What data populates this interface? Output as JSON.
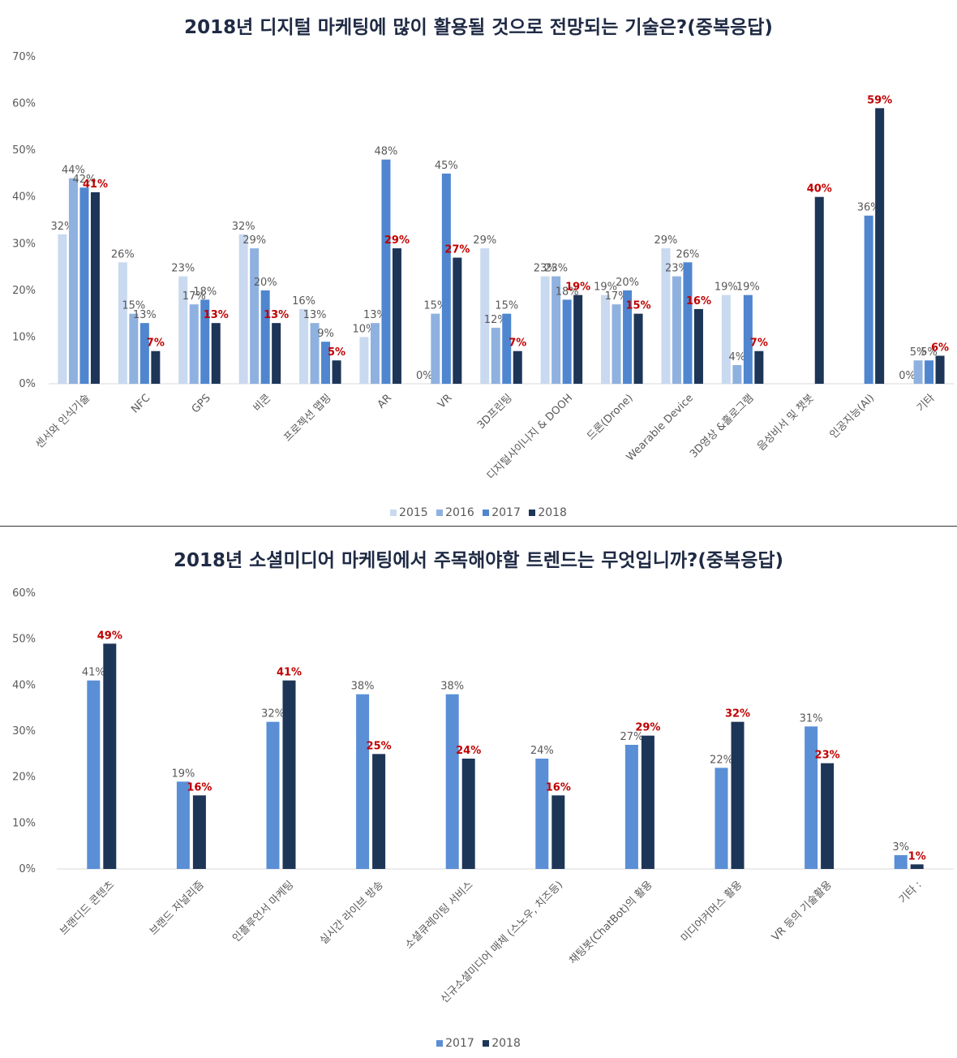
{
  "chart_data": [
    {
      "type": "bar",
      "title": "2018년 디지털 마케팅에 많이 활용될 것으로 전망되는 기술은?(중복응답)",
      "xlabel": "",
      "ylabel": "",
      "ylim": [
        0,
        70
      ],
      "yticks": [
        "0%",
        "10%",
        "20%",
        "30%",
        "40%",
        "50%",
        "60%",
        "70%"
      ],
      "grid": false,
      "legend_position": "bottom",
      "categories": [
        "센서와 인식기술",
        "NFC",
        "GPS",
        "비콘",
        "프로젝션 맵핑",
        "AR",
        "VR",
        "3D프린팅",
        "디지털사이니지 & DOOH",
        "드론(Drone)",
        "Wearable Device",
        "3D영상 &홀로그램",
        "음성비서 및 챗봇",
        "인공지능(AI)",
        "기타"
      ],
      "series": [
        {
          "name": "2015",
          "color": "#c9d9ef",
          "values": [
            32,
            26,
            23,
            32,
            16,
            10,
            0,
            29,
            23,
            19,
            29,
            19,
            null,
            null,
            0
          ],
          "labels": [
            "32%",
            "26%",
            "23%",
            "32%",
            "16%",
            "10%",
            "0%",
            "29%",
            "23%",
            "19%",
            "29%",
            "19%",
            null,
            null,
            "0%"
          ]
        },
        {
          "name": "2016",
          "color": "#8fb1df",
          "values": [
            44,
            15,
            17,
            29,
            13,
            13,
            15,
            12,
            23,
            17,
            23,
            4,
            null,
            null,
            5
          ],
          "labels": [
            "44%",
            "15%",
            "17%",
            "29%",
            "13%",
            "13%",
            "15%",
            "12%",
            "23%",
            "17%",
            "23%",
            "4%",
            null,
            null,
            "5%"
          ]
        },
        {
          "name": "2017",
          "color": "#4f86cf",
          "values": [
            42,
            13,
            18,
            20,
            9,
            48,
            45,
            15,
            18,
            20,
            26,
            19,
            null,
            36,
            5
          ],
          "labels": [
            "42%",
            "13%",
            "18%",
            "20%",
            "9%",
            "48%",
            "45%",
            "15%",
            "18%",
            "20%",
            "26%",
            "19%",
            null,
            "36%",
            "5%"
          ]
        },
        {
          "name": "2018",
          "color": "#1d3557",
          "values": [
            41,
            7,
            13,
            13,
            5,
            29,
            27,
            7,
            19,
            15,
            16,
            7,
            40,
            59,
            6
          ],
          "labels": [
            "41%",
            "7%",
            "13%",
            "13%",
            "5%",
            "29%",
            "27%",
            "7%",
            "19%",
            "15%",
            "16%",
            "7%",
            "40%",
            "59%",
            "6%"
          ],
          "highlight": true
        }
      ]
    },
    {
      "type": "bar",
      "title": "2018년 소셜미디어 마케팅에서 주목해야할 트렌드는 무엇입니까?(중복응답)",
      "xlabel": "",
      "ylabel": "",
      "ylim": [
        0,
        60
      ],
      "yticks": [
        "0%",
        "10%",
        "20%",
        "30%",
        "40%",
        "50%",
        "60%"
      ],
      "grid": false,
      "legend_position": "bottom",
      "categories": [
        "브랜디드 콘텐츠",
        "브랜드 저널리즘",
        "인플루언서 마케팅",
        "실시간 라이브 방송",
        "소셜큐레이팅 서비스",
        "신규소셜미디어 매체 (스노우, 치즈등)",
        "채팅봇(ChatBot)의 활용",
        "미디어커머스 활용",
        "VR 등의 기술활용",
        "기타 :"
      ],
      "series": [
        {
          "name": "2017",
          "color": "#5a8fd6",
          "values": [
            41,
            19,
            32,
            38,
            38,
            24,
            27,
            22,
            31,
            3
          ],
          "labels": [
            "41%",
            "19%",
            "32%",
            "38%",
            "38%",
            "24%",
            "27%",
            "22%",
            "31%",
            "3%"
          ]
        },
        {
          "name": "2018",
          "color": "#1d3557",
          "values": [
            49,
            16,
            41,
            25,
            24,
            16,
            29,
            32,
            23,
            1
          ],
          "labels": [
            "49%",
            "16%",
            "41%",
            "25%",
            "24%",
            "16%",
            "29%",
            "32%",
            "23%",
            "1%"
          ],
          "highlight": true
        }
      ]
    }
  ]
}
